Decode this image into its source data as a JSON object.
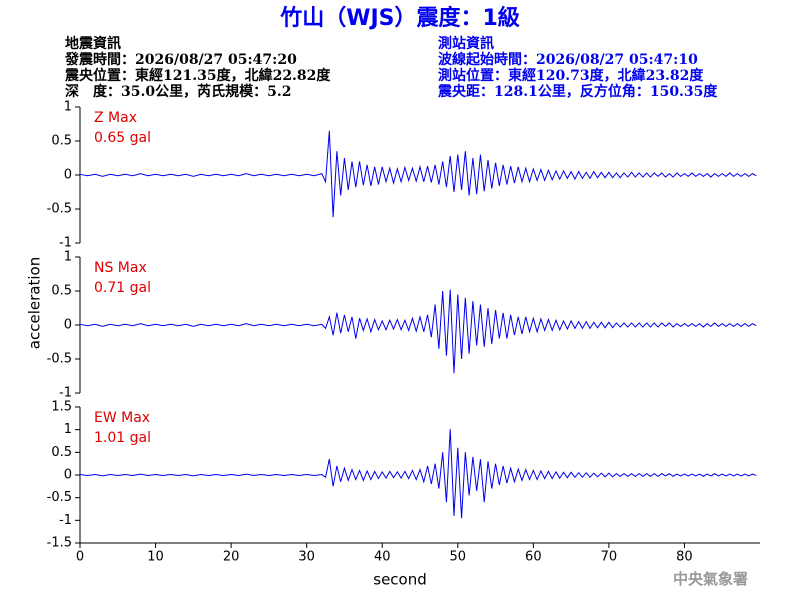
{
  "header": {
    "title": "竹山（WJS）震度：1級",
    "event": [
      "地震資訊",
      "發震時間：2026/08/27 05:47:20",
      "震央位置：東經121.35度，北緯22.82度",
      "深　度：35.0公里，芮氏規模：5.2"
    ],
    "station": [
      "測站資訊",
      "波線起始時間：2026/08/27 05:47:10",
      "測站位置：東經120.73度，北緯23.82度",
      "震央距：128.1公里，反方位角：150.35度"
    ],
    "credit": "中央氣象署"
  },
  "chart_data": {
    "type": "line",
    "xlabel": "second",
    "ylabel": "acceleration",
    "xlim": [
      0,
      90
    ],
    "xticks": [
      0,
      10,
      20,
      30,
      40,
      50,
      60,
      70,
      80
    ],
    "x": [
      0,
      1,
      2,
      3,
      4,
      5,
      6,
      7,
      8,
      9,
      10,
      11,
      12,
      13,
      14,
      15,
      16,
      17,
      18,
      19,
      20,
      21,
      22,
      23,
      24,
      25,
      26,
      27,
      28,
      29,
      30,
      31,
      32,
      32.5,
      33,
      33.5,
      34,
      34.5,
      35,
      35.5,
      36,
      36.5,
      37,
      37.5,
      38,
      38.5,
      39,
      39.5,
      40,
      40.5,
      41,
      41.5,
      42,
      42.5,
      43,
      43.5,
      44,
      44.5,
      45,
      45.5,
      46,
      46.5,
      47,
      47.5,
      48,
      48.5,
      49,
      49.5,
      50,
      50.5,
      51,
      51.5,
      52,
      52.5,
      53,
      53.5,
      54,
      54.5,
      55,
      55.5,
      56,
      56.5,
      57,
      57.5,
      58,
      58.5,
      59,
      59.5,
      60,
      60.5,
      61,
      61.5,
      62,
      62.5,
      63,
      63.5,
      64,
      64.5,
      65,
      65.5,
      66,
      66.5,
      67,
      67.5,
      68,
      68.5,
      69,
      69.5,
      70,
      70.5,
      71,
      71.5,
      72,
      72.5,
      73,
      73.5,
      74,
      74.5,
      75,
      75.5,
      76,
      76.5,
      77,
      77.5,
      78,
      78.5,
      79,
      79.5,
      80,
      80.5,
      81,
      81.5,
      82,
      82.5,
      83,
      83.5,
      84,
      84.5,
      85,
      85.5,
      86,
      86.5,
      87,
      87.5,
      88,
      88.5,
      89,
      89.5
    ],
    "panels": [
      {
        "max": "0.65 gal",
        "ylim": [
          -1,
          1
        ],
        "yticks": [
          -1,
          -0.5,
          0,
          0.5,
          1
        ],
        "series": [
          {
            "name": "Z Max",
            "color": "#0000ee",
            "values": [
              0.01,
              -0.01,
              0.01,
              -0.02,
              0.01,
              -0.01,
              0.01,
              -0.01,
              0.02,
              -0.01,
              0.01,
              -0.01,
              0.01,
              -0.01,
              0.01,
              -0.02,
              0.01,
              -0.01,
              0.01,
              -0.01,
              0.01,
              -0.01,
              0.02,
              -0.01,
              0.01,
              -0.01,
              0.01,
              -0.01,
              0.01,
              -0.01,
              0.01,
              -0.01,
              0.02,
              -0.1,
              0.65,
              -0.62,
              0.35,
              -0.3,
              0.25,
              -0.22,
              0.2,
              -0.18,
              0.2,
              -0.15,
              0.15,
              -0.16,
              0.12,
              -0.14,
              0.12,
              -0.1,
              0.1,
              -0.12,
              0.09,
              -0.1,
              0.11,
              -0.08,
              0.1,
              -0.09,
              0.12,
              -0.1,
              0.13,
              -0.11,
              0.15,
              -0.14,
              0.2,
              -0.18,
              0.28,
              -0.25,
              0.3,
              -0.22,
              0.35,
              -0.3,
              0.25,
              -0.28,
              0.3,
              -0.24,
              0.22,
              -0.2,
              0.18,
              -0.16,
              0.15,
              -0.14,
              0.13,
              -0.12,
              0.12,
              -0.1,
              0.1,
              -0.1,
              0.09,
              -0.08,
              0.08,
              -0.08,
              0.07,
              -0.07,
              0.06,
              -0.06,
              0.06,
              -0.05,
              0.05,
              -0.06,
              0.05,
              -0.05,
              0.04,
              -0.05,
              0.05,
              -0.04,
              0.04,
              -0.04,
              0.04,
              -0.04,
              0.03,
              -0.04,
              0.03,
              -0.03,
              0.04,
              -0.03,
              0.03,
              -0.03,
              0.03,
              -0.03,
              0.03,
              -0.02,
              0.03,
              -0.03,
              0.02,
              -0.03,
              0.03,
              -0.02,
              0.02,
              -0.02,
              0.03,
              -0.02,
              0.02,
              -0.02,
              0.02,
              -0.03,
              0.02,
              -0.02,
              0.02,
              -0.02,
              0.03,
              -0.02,
              0.02,
              -0.02,
              0.02,
              -0.02,
              0.02,
              -0.01
            ]
          }
        ]
      },
      {
        "max": "0.71 gal",
        "ylim": [
          -1,
          1
        ],
        "yticks": [
          -1,
          -0.5,
          0,
          0.5,
          1
        ],
        "series": [
          {
            "name": "NS Max",
            "color": "#0000ee",
            "values": [
              0.01,
              -0.01,
              0.01,
              -0.02,
              0.01,
              -0.01,
              0.01,
              -0.01,
              0.02,
              -0.01,
              0.01,
              -0.01,
              0.01,
              -0.01,
              0.01,
              -0.02,
              0.01,
              -0.01,
              0.01,
              -0.01,
              0.01,
              -0.01,
              0.02,
              -0.01,
              0.01,
              -0.01,
              0.01,
              -0.01,
              0.01,
              -0.01,
              0.01,
              -0.01,
              0.01,
              -0.05,
              0.12,
              -0.15,
              0.18,
              -0.12,
              0.15,
              -0.1,
              0.12,
              -0.2,
              0.1,
              -0.08,
              0.09,
              -0.1,
              0.08,
              -0.07,
              0.06,
              -0.07,
              0.07,
              -0.06,
              0.08,
              -0.07,
              0.07,
              -0.08,
              0.1,
              -0.09,
              0.12,
              -0.1,
              0.15,
              -0.18,
              0.3,
              -0.35,
              0.5,
              -0.45,
              0.52,
              -0.71,
              0.45,
              -0.5,
              0.4,
              -0.42,
              0.35,
              -0.3,
              0.3,
              -0.32,
              0.25,
              -0.28,
              0.22,
              -0.2,
              0.18,
              -0.2,
              0.15,
              -0.15,
              0.12,
              -0.13,
              0.12,
              -0.1,
              0.1,
              -0.1,
              0.09,
              -0.08,
              0.08,
              -0.08,
              0.07,
              -0.07,
              0.06,
              -0.06,
              0.06,
              -0.05,
              0.05,
              -0.05,
              0.05,
              -0.05,
              0.04,
              -0.04,
              0.04,
              -0.04,
              0.04,
              -0.04,
              0.03,
              -0.03,
              0.03,
              -0.03,
              0.03,
              -0.03,
              0.03,
              -0.03,
              0.03,
              -0.03,
              0.03,
              -0.03,
              0.03,
              -0.02,
              0.03,
              -0.03,
              0.02,
              -0.02,
              0.02,
              -0.02,
              0.02,
              -0.02,
              0.02,
              -0.03,
              0.02,
              -0.02,
              0.03,
              -0.02,
              0.02,
              -0.02,
              0.02,
              -0.02,
              0.02,
              -0.02,
              0.02,
              -0.02,
              0.02,
              -0.01
            ]
          }
        ]
      },
      {
        "max": "1.01 gal",
        "ylim": [
          -1.5,
          1.5
        ],
        "yticks": [
          -1.5,
          -1,
          -0.5,
          0,
          0.5,
          1,
          1.5
        ],
        "series": [
          {
            "name": "EW Max",
            "color": "#0000ee",
            "values": [
              0.01,
              -0.01,
              0.01,
              -0.02,
              0.01,
              -0.01,
              0.01,
              -0.01,
              0.02,
              -0.01,
              0.01,
              -0.01,
              0.01,
              -0.01,
              0.01,
              -0.02,
              0.01,
              -0.01,
              0.01,
              -0.01,
              0.01,
              -0.01,
              0.02,
              -0.01,
              0.01,
              -0.01,
              0.01,
              -0.01,
              0.01,
              -0.01,
              0.01,
              -0.01,
              0.01,
              -0.05,
              0.35,
              -0.25,
              0.2,
              -0.15,
              0.15,
              -0.12,
              0.12,
              -0.1,
              0.1,
              -0.12,
              0.09,
              -0.1,
              0.08,
              -0.08,
              0.07,
              -0.07,
              0.08,
              -0.06,
              0.07,
              -0.07,
              0.08,
              -0.08,
              0.1,
              -0.1,
              0.12,
              -0.15,
              0.2,
              -0.2,
              0.25,
              -0.3,
              0.5,
              -0.6,
              1.01,
              -0.9,
              0.6,
              -0.95,
              0.5,
              -0.45,
              0.4,
              -0.35,
              0.35,
              -0.6,
              0.3,
              -0.3,
              0.25,
              -0.22,
              0.2,
              -0.18,
              0.15,
              -0.15,
              0.13,
              -0.12,
              0.12,
              -0.1,
              0.1,
              -0.1,
              0.09,
              -0.08,
              0.08,
              -0.08,
              0.07,
              -0.07,
              0.06,
              -0.06,
              0.06,
              -0.05,
              0.05,
              -0.05,
              0.05,
              -0.05,
              0.04,
              -0.04,
              0.04,
              -0.04,
              0.04,
              -0.04,
              0.03,
              -0.03,
              0.03,
              -0.03,
              0.03,
              -0.03,
              0.03,
              -0.03,
              0.03,
              -0.03,
              0.03,
              -0.03,
              0.03,
              -0.02,
              0.03,
              -0.03,
              0.02,
              -0.02,
              0.02,
              -0.02,
              0.02,
              -0.02,
              0.02,
              -0.03,
              0.02,
              -0.02,
              0.03,
              -0.02,
              0.02,
              -0.02,
              0.02,
              -0.02,
              0.02,
              -0.02,
              0.02,
              -0.02,
              0.02,
              -0.01
            ]
          }
        ]
      }
    ]
  }
}
